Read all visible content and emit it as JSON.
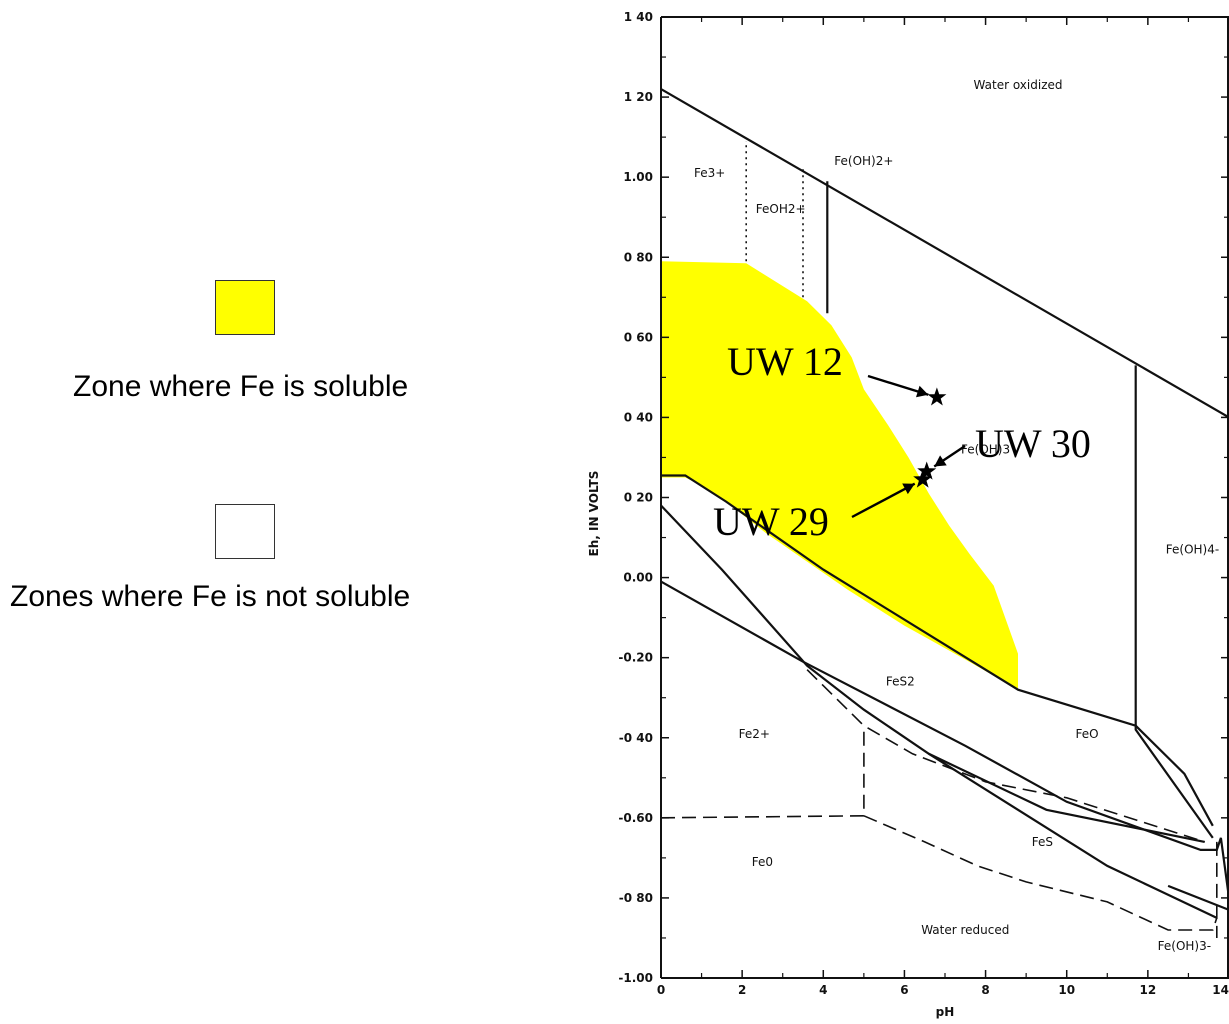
{
  "legend": {
    "soluble_label": "Zone where Fe is soluble",
    "soluble_color": "#ffff00",
    "insoluble_label": "Zones where Fe is not soluble",
    "insoluble_color": "#ffffff"
  },
  "chart_data": {
    "type": "area",
    "title": "",
    "xlabel": "pH",
    "ylabel": "Eh, IN VOLTS",
    "xlim": [
      0,
      14
    ],
    "ylim": [
      -1.0,
      1.4
    ],
    "x_ticks": [
      {
        "value": 0,
        "label": "0"
      },
      {
        "value": 2,
        "label": "2"
      },
      {
        "value": 4,
        "label": "4"
      },
      {
        "value": 6,
        "label": "6"
      },
      {
        "value": 8,
        "label": "8"
      },
      {
        "value": 10,
        "label": "10"
      },
      {
        "value": 12,
        "label": "12"
      },
      {
        "value": 14,
        "label": "14"
      }
    ],
    "y_ticks": [
      {
        "value": 1.4,
        "label": "1 40"
      },
      {
        "value": 1.2,
        "label": "1 20"
      },
      {
        "value": 1.0,
        "label": "1.00"
      },
      {
        "value": 0.8,
        "label": "0 80"
      },
      {
        "value": 0.6,
        "label": "0 60"
      },
      {
        "value": 0.4,
        "label": "0 40"
      },
      {
        "value": 0.2,
        "label": "0 20"
      },
      {
        "value": 0.0,
        "label": "0.00"
      },
      {
        "value": -0.2,
        "label": "-0.20"
      },
      {
        "value": -0.4,
        "label": "-0 40"
      },
      {
        "value": -0.6,
        "label": "-0.60"
      },
      {
        "value": -0.8,
        "label": "-0 80"
      },
      {
        "value": -1.0,
        "label": "-1.00"
      }
    ],
    "soluble_zone": [
      [
        0,
        0.79
      ],
      [
        2.1,
        0.785
      ],
      [
        3.6,
        0.69
      ],
      [
        4.2,
        0.63
      ],
      [
        4.7,
        0.55
      ],
      [
        5.0,
        0.47
      ],
      [
        5.6,
        0.38
      ],
      [
        6.1,
        0.3
      ],
      [
        6.6,
        0.21
      ],
      [
        7.1,
        0.13
      ],
      [
        7.6,
        0.06
      ],
      [
        8.2,
        -0.02
      ],
      [
        8.8,
        -0.19
      ],
      [
        8.8,
        -0.28
      ],
      [
        7.6,
        -0.21
      ],
      [
        6.0,
        -0.12
      ],
      [
        4.6,
        -0.03
      ],
      [
        3.6,
        0.04
      ],
      [
        2.6,
        0.11
      ],
      [
        1.6,
        0.19
      ],
      [
        1.0,
        0.23
      ],
      [
        0.6,
        0.25
      ],
      [
        0,
        0.25
      ]
    ],
    "solid_lines": [
      {
        "name": "water-oxidized-boundary",
        "points": [
          [
            0,
            1.22
          ],
          [
            14,
            0.4
          ]
        ]
      },
      {
        "name": "fe3-feoh2-boundary",
        "points": [
          [
            4.1,
            0.66
          ],
          [
            4.1,
            0.99
          ]
        ]
      },
      {
        "name": "feoh4-boundary",
        "points": [
          [
            11.7,
            -0.37
          ],
          [
            11.7,
            0.53
          ]
        ]
      },
      {
        "name": "feoh3-lower-boundary",
        "points": [
          [
            0,
            0.255
          ],
          [
            0.6,
            0.255
          ],
          [
            1.6,
            0.19
          ],
          [
            4.0,
            0.02
          ],
          [
            8.8,
            -0.28
          ],
          [
            11.7,
            -0.37
          ],
          [
            11.7,
            -0.38
          ],
          [
            13.6,
            -0.65
          ]
        ]
      },
      {
        "name": "fes2-upper-boundary",
        "points": [
          [
            0,
            0.18
          ],
          [
            1.5,
            0.02
          ],
          [
            3.6,
            -0.22
          ],
          [
            5.0,
            -0.33
          ],
          [
            6.6,
            -0.44
          ],
          [
            9.5,
            -0.58
          ],
          [
            13.4,
            -0.66
          ]
        ]
      },
      {
        "name": "fes2-lower-boundary",
        "points": [
          [
            0,
            -0.01
          ],
          [
            3.5,
            -0.21
          ],
          [
            7.5,
            -0.42
          ],
          [
            10.0,
            -0.56
          ],
          [
            13.3,
            -0.68
          ],
          [
            13.7,
            -0.68
          ],
          [
            13.8,
            -0.65
          ],
          [
            14,
            -0.8
          ]
        ]
      },
      {
        "name": "feo-lower-boundary",
        "points": [
          [
            6.6,
            -0.44
          ],
          [
            11.0,
            -0.72
          ],
          [
            13.7,
            -0.85
          ]
        ]
      },
      {
        "name": "water-reduced-boundary",
        "points": [
          [
            12.5,
            -0.77
          ],
          [
            14,
            -0.83
          ]
        ]
      },
      {
        "name": "feoh4-lower-right-boundary",
        "points": [
          [
            11.7,
            -0.37
          ],
          [
            12.9,
            -0.49
          ],
          [
            13.6,
            -0.62
          ]
        ]
      }
    ],
    "dashed_lines": [
      {
        "name": "fe2-fe0-boundary",
        "points": [
          [
            0,
            -0.6
          ],
          [
            5.0,
            -0.595
          ],
          [
            5.0,
            -0.37
          ]
        ]
      },
      {
        "name": "fe2-fes-boundary",
        "points": [
          [
            3.6,
            -0.23
          ],
          [
            5.0,
            -0.37
          ],
          [
            6.2,
            -0.44
          ],
          [
            8.0,
            -0.51
          ],
          [
            10.0,
            -0.55
          ],
          [
            13.4,
            -0.66
          ]
        ]
      },
      {
        "name": "fes-lower-boundary",
        "points": [
          [
            5.0,
            -0.595
          ],
          [
            6.5,
            -0.66
          ],
          [
            7.8,
            -0.72
          ],
          [
            9.0,
            -0.76
          ],
          [
            11.0,
            -0.81
          ],
          [
            12.5,
            -0.88
          ],
          [
            13.6,
            -0.88
          ],
          [
            13.7,
            -0.85
          ]
        ]
      },
      {
        "name": "right-edge-boundary",
        "points": [
          [
            13.7,
            -0.66
          ],
          [
            13.7,
            -0.9
          ]
        ]
      }
    ],
    "dotted_lines": [
      {
        "name": "fe3-feoh-boundary",
        "points": [
          [
            2.1,
            0.79
          ],
          [
            2.1,
            1.09
          ]
        ]
      },
      {
        "name": "feoh-feoh2-boundary",
        "points": [
          [
            3.5,
            0.7
          ],
          [
            3.5,
            1.02
          ]
        ]
      }
    ],
    "region_labels": [
      {
        "label": "Water oxidized",
        "x": 8.8,
        "y": 1.22
      },
      {
        "label": "Fe3+",
        "x": 1.2,
        "y": 1.0
      },
      {
        "label": "Fe(OH)2+",
        "x": 5.0,
        "y": 1.03
      },
      {
        "label": "FeOH2+",
        "x": 2.95,
        "y": 0.91
      },
      {
        "label": "Fe(OH)3",
        "x": 8.0,
        "y": 0.31
      },
      {
        "label": "Fe(OH)4-",
        "x": 13.1,
        "y": 0.06
      },
      {
        "label": "FeS2",
        "x": 5.9,
        "y": -0.27
      },
      {
        "label": "FeO",
        "x": 10.5,
        "y": -0.4
      },
      {
        "label": "Fe2+",
        "x": 2.3,
        "y": -0.4
      },
      {
        "label": "FeS",
        "x": 9.4,
        "y": -0.67
      },
      {
        "label": "Fe0",
        "x": 2.5,
        "y": -0.72
      },
      {
        "label": "Water reduced",
        "x": 7.5,
        "y": -0.89
      },
      {
        "label": "Fe(OH)3-",
        "x": 12.9,
        "y": -0.93
      }
    ],
    "samples": [
      {
        "name": "UW 12",
        "pH": 6.8,
        "Eh": 0.45
      },
      {
        "name": "UW 30",
        "pH": 6.55,
        "Eh": 0.265
      },
      {
        "name": "UW 29",
        "pH": 6.45,
        "Eh": 0.245
      }
    ]
  }
}
